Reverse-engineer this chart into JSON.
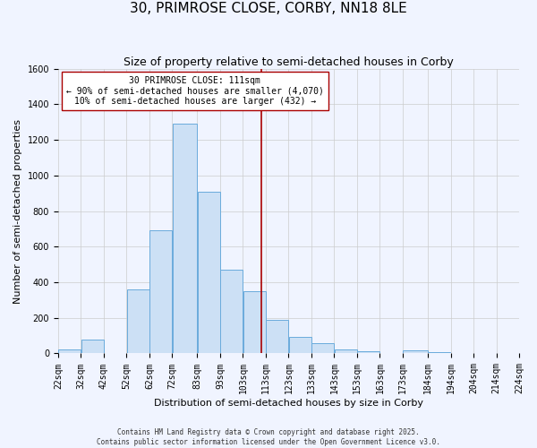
{
  "title": "30, PRIMROSE CLOSE, CORBY, NN18 8LE",
  "subtitle": "Size of property relative to semi-detached houses in Corby",
  "xlabel": "Distribution of semi-detached houses by size in Corby",
  "ylabel": "Number of semi-detached properties",
  "bin_edges": [
    22,
    32,
    42,
    52,
    62,
    72,
    83,
    93,
    103,
    113,
    123,
    133,
    143,
    153,
    163,
    173,
    184,
    194,
    204,
    214,
    224
  ],
  "bin_labels": [
    "22sqm",
    "32sqm",
    "42sqm",
    "52sqm",
    "62sqm",
    "72sqm",
    "83sqm",
    "93sqm",
    "103sqm",
    "113sqm",
    "123sqm",
    "133sqm",
    "143sqm",
    "153sqm",
    "163sqm",
    "173sqm",
    "184sqm",
    "194sqm",
    "204sqm",
    "214sqm",
    "224sqm"
  ],
  "counts": [
    25,
    80,
    0,
    360,
    690,
    1290,
    910,
    470,
    350,
    190,
    95,
    60,
    25,
    10,
    0,
    15,
    5,
    0,
    0,
    0
  ],
  "bar_facecolor": "#cce0f5",
  "bar_edgecolor": "#6aabdc",
  "grid_color": "#cccccc",
  "background_color": "#f0f4ff",
  "vline_x": 111,
  "vline_color": "#aa0000",
  "annotation_text": "30 PRIMROSE CLOSE: 111sqm\n← 90% of semi-detached houses are smaller (4,070)\n10% of semi-detached houses are larger (432) →",
  "annotation_box_edgecolor": "#aa0000",
  "annotation_box_facecolor": "#ffffff",
  "ylim": [
    0,
    1600
  ],
  "yticks": [
    0,
    200,
    400,
    600,
    800,
    1000,
    1200,
    1400,
    1600
  ],
  "footer_line1": "Contains HM Land Registry data © Crown copyright and database right 2025.",
  "footer_line2": "Contains public sector information licensed under the Open Government Licence v3.0.",
  "title_fontsize": 11,
  "subtitle_fontsize": 9,
  "label_fontsize": 8,
  "tick_fontsize": 7,
  "annotation_fontsize": 7,
  "footer_fontsize": 5.5
}
